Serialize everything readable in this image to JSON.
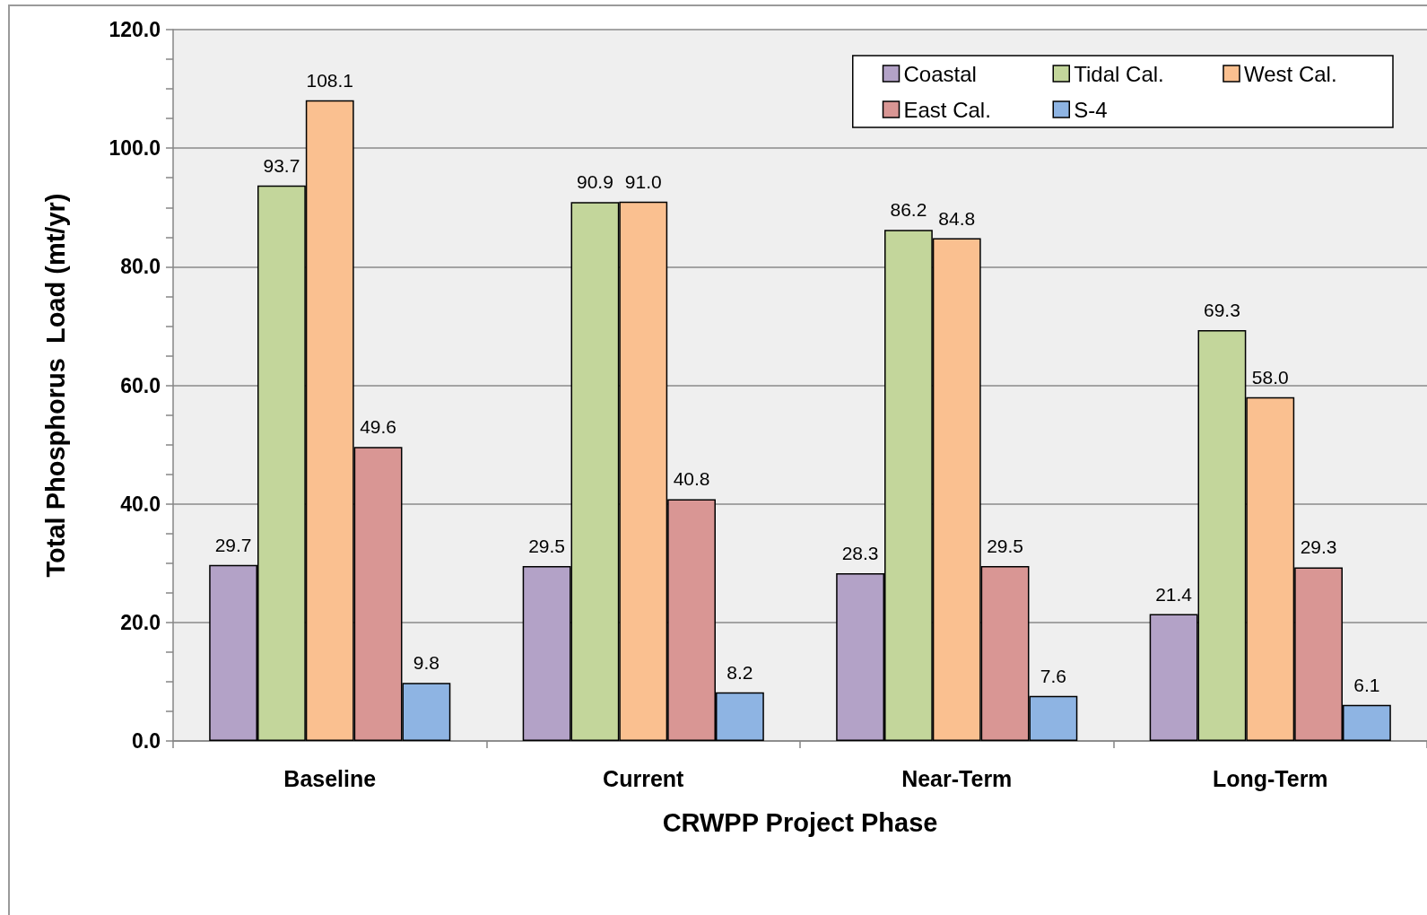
{
  "chart_data": {
    "type": "bar",
    "categories": [
      "Baseline",
      "Current",
      "Near-Term",
      "Long-Term"
    ],
    "series": [
      {
        "name": "Coastal",
        "color": "#b3a2c7",
        "values": [
          29.7,
          29.5,
          28.3,
          21.4
        ],
        "value_labels": [
          "29.7",
          "29.5",
          "28.3",
          "21.4"
        ]
      },
      {
        "name": "Tidal Cal.",
        "color": "#c3d69b",
        "values": [
          93.7,
          90.9,
          86.2,
          69.3
        ],
        "value_labels": [
          "93.7",
          "90.9",
          "86.2",
          "69.3"
        ]
      },
      {
        "name": "West Cal.",
        "color": "#fac090",
        "values": [
          108.1,
          91.0,
          84.8,
          58.0
        ],
        "value_labels": [
          "108.1",
          "91.0",
          "84.8",
          "58.0"
        ]
      },
      {
        "name": "East Cal.",
        "color": "#d99694",
        "values": [
          49.6,
          40.8,
          29.5,
          29.3
        ],
        "value_labels": [
          "49.6",
          "40.8",
          "29.5",
          "29.3"
        ]
      },
      {
        "name": "S-4",
        "color": "#8eb4e3",
        "values": [
          9.8,
          8.2,
          7.6,
          6.1
        ],
        "value_labels": [
          "9.8",
          "8.2",
          "7.6",
          "6.1"
        ]
      }
    ],
    "xlabel": "CRWPP Project Phase",
    "ylabel": "Total Phosphorus  Load (mt/yr)",
    "ylim": [
      0,
      120
    ],
    "yticks": [
      {
        "value": 0,
        "label": "0.0"
      },
      {
        "value": 5,
        "label": null
      },
      {
        "value": 10,
        "label": null
      },
      {
        "value": 15,
        "label": null
      },
      {
        "value": 20,
        "label": "20.0"
      },
      {
        "value": 25,
        "label": null
      },
      {
        "value": 30,
        "label": null
      },
      {
        "value": 35,
        "label": null
      },
      {
        "value": 40,
        "label": "40.0"
      },
      {
        "value": 45,
        "label": null
      },
      {
        "value": 50,
        "label": null
      },
      {
        "value": 55,
        "label": null
      },
      {
        "value": 60,
        "label": "60.0"
      },
      {
        "value": 65,
        "label": null
      },
      {
        "value": 70,
        "label": null
      },
      {
        "value": 75,
        "label": null
      },
      {
        "value": 80,
        "label": "80.0"
      },
      {
        "value": 85,
        "label": null
      },
      {
        "value": 90,
        "label": null
      },
      {
        "value": 95,
        "label": null
      },
      {
        "value": 100,
        "label": "100.0"
      },
      {
        "value": 105,
        "label": null
      },
      {
        "value": 110,
        "label": null
      },
      {
        "value": 115,
        "label": null
      },
      {
        "value": 120,
        "label": "120.0"
      }
    ],
    "grid": "y",
    "legend": "top right"
  }
}
